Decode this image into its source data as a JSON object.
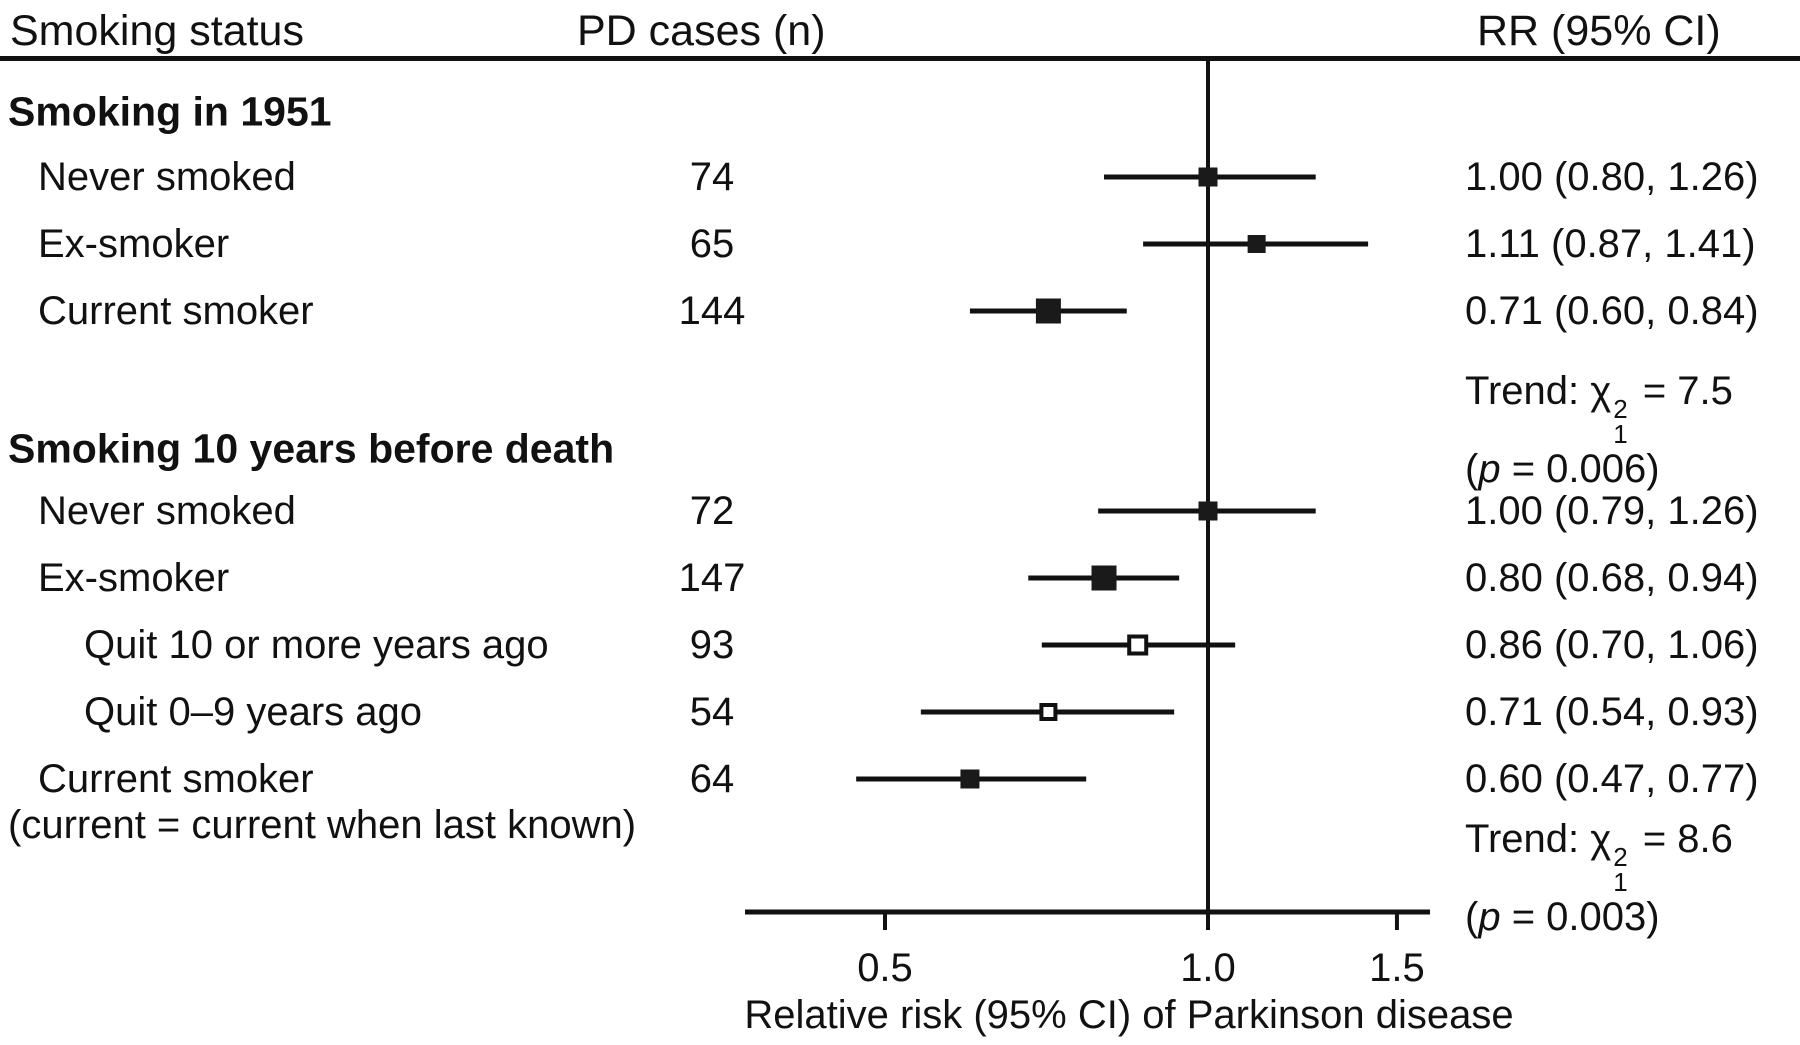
{
  "figure": {
    "columns": {
      "smoking_status": "Smoking status",
      "pd_cases": "PD cases (n)",
      "rr_ci": "RR (95% CI)"
    }
  },
  "chart_data": {
    "type": "forest",
    "xlabel": "Relative risk (95% CI) of Parkinson disease",
    "x_scale": "log",
    "x_ticks": [
      0.5,
      1.0,
      1.5
    ],
    "x_tick_labels": [
      "0.5",
      "1.0",
      "1.5"
    ],
    "x_range": [
      0.37,
      1.61
    ],
    "reference_line": 1.0,
    "grid": false,
    "groups": [
      {
        "heading": "Smoking in 1951",
        "rows": [
          {
            "label": "Never smoked",
            "indent": 1,
            "n": "74",
            "rr": 1.0,
            "ci_low": 0.8,
            "ci_high": 1.26,
            "rr_text": "1.00 (0.80, 1.26)",
            "marker": "filled",
            "marker_size": 19
          },
          {
            "label": "Ex-smoker",
            "indent": 1,
            "n": "65",
            "rr": 1.11,
            "ci_low": 0.87,
            "ci_high": 1.41,
            "rr_text": "1.11 (0.87, 1.41)",
            "marker": "filled",
            "marker_size": 18
          },
          {
            "label": "Current smoker",
            "indent": 1,
            "n": "144",
            "rr": 0.71,
            "ci_low": 0.6,
            "ci_high": 0.84,
            "rr_text": "0.71 (0.60, 0.84)",
            "marker": "filled",
            "marker_size": 25
          }
        ],
        "trend": {
          "label": "Trend: χ",
          "sup": "2",
          "sub": "1",
          "value": " = 7.5",
          "p_open": "(",
          "p_symbol": "p",
          "p_rest": " = 0.006)"
        }
      },
      {
        "heading": "Smoking 10 years before death",
        "rows": [
          {
            "label": "Never smoked",
            "indent": 1,
            "n": "72",
            "rr": 1.0,
            "ci_low": 0.79,
            "ci_high": 1.26,
            "rr_text": "1.00 (0.79, 1.26)",
            "marker": "filled",
            "marker_size": 19
          },
          {
            "label": "Ex-smoker",
            "indent": 1,
            "n": "147",
            "rr": 0.8,
            "ci_low": 0.68,
            "ci_high": 0.94,
            "rr_text": "0.80 (0.68, 0.94)",
            "marker": "filled",
            "marker_size": 25
          },
          {
            "label": "Quit 10 or more years ago",
            "indent": 2,
            "n": "93",
            "rr": 0.86,
            "ci_low": 0.7,
            "ci_high": 1.06,
            "rr_text": "0.86 (0.70, 1.06)",
            "marker": "open",
            "marker_size": 17
          },
          {
            "label": "Quit 0–9 years ago",
            "indent": 2,
            "n": "54",
            "rr": 0.71,
            "ci_low": 0.54,
            "ci_high": 0.93,
            "rr_text": "0.71 (0.54, 0.93)",
            "marker": "open",
            "marker_size": 14
          },
          {
            "label": "Current smoker",
            "indent": 1,
            "n": "64",
            "rr": 0.6,
            "ci_low": 0.47,
            "ci_high": 0.77,
            "rr_text": "0.60 (0.47, 0.77)",
            "marker": "filled",
            "marker_size": 19
          }
        ],
        "note": "(current = current when last known)",
        "trend": {
          "label": "Trend: χ",
          "sup": "2",
          "sub": "1",
          "value": " = 8.6",
          "p_open": "(",
          "p_symbol": "p",
          "p_rest": " = 0.003)"
        }
      }
    ],
    "colors": {
      "line": "#111111",
      "marker_fill": "#1a1a1a",
      "marker_open_fill": "#ffffff",
      "text": "#111111"
    }
  }
}
